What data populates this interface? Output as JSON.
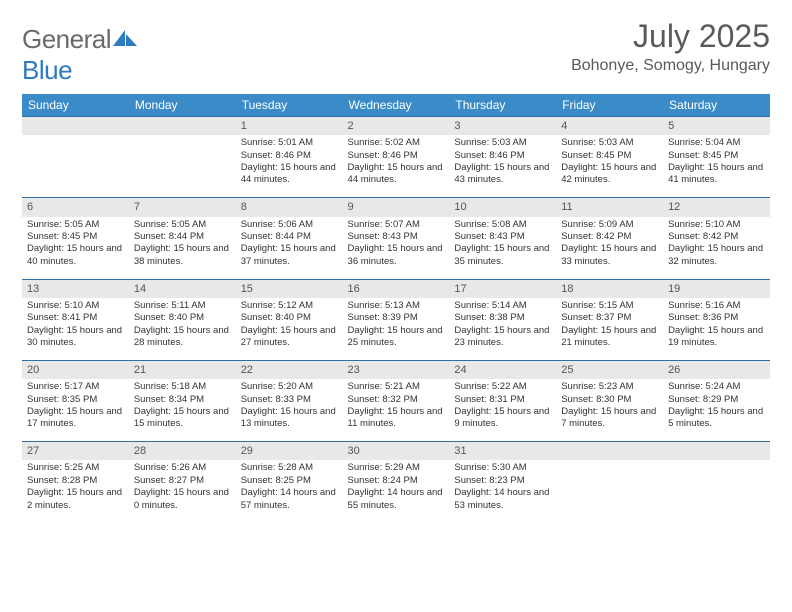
{
  "logo": {
    "text1": "General",
    "text2": "Blue"
  },
  "title": "July 2025",
  "location": "Bohonye, Somogy, Hungary",
  "colors": {
    "header_bg": "#3b8bc8",
    "header_text": "#ffffff",
    "daynum_bg": "#e8e8e8",
    "border": "#2f6fa8",
    "logo_gray": "#6a6a6a",
    "logo_blue": "#2f7bc0"
  },
  "weekdays": [
    "Sunday",
    "Monday",
    "Tuesday",
    "Wednesday",
    "Thursday",
    "Friday",
    "Saturday"
  ],
  "weeks": [
    [
      {
        "n": "",
        "sr": "",
        "ss": "",
        "dl": ""
      },
      {
        "n": "",
        "sr": "",
        "ss": "",
        "dl": ""
      },
      {
        "n": "1",
        "sr": "Sunrise: 5:01 AM",
        "ss": "Sunset: 8:46 PM",
        "dl": "Daylight: 15 hours and 44 minutes."
      },
      {
        "n": "2",
        "sr": "Sunrise: 5:02 AM",
        "ss": "Sunset: 8:46 PM",
        "dl": "Daylight: 15 hours and 44 minutes."
      },
      {
        "n": "3",
        "sr": "Sunrise: 5:03 AM",
        "ss": "Sunset: 8:46 PM",
        "dl": "Daylight: 15 hours and 43 minutes."
      },
      {
        "n": "4",
        "sr": "Sunrise: 5:03 AM",
        "ss": "Sunset: 8:45 PM",
        "dl": "Daylight: 15 hours and 42 minutes."
      },
      {
        "n": "5",
        "sr": "Sunrise: 5:04 AM",
        "ss": "Sunset: 8:45 PM",
        "dl": "Daylight: 15 hours and 41 minutes."
      }
    ],
    [
      {
        "n": "6",
        "sr": "Sunrise: 5:05 AM",
        "ss": "Sunset: 8:45 PM",
        "dl": "Daylight: 15 hours and 40 minutes."
      },
      {
        "n": "7",
        "sr": "Sunrise: 5:05 AM",
        "ss": "Sunset: 8:44 PM",
        "dl": "Daylight: 15 hours and 38 minutes."
      },
      {
        "n": "8",
        "sr": "Sunrise: 5:06 AM",
        "ss": "Sunset: 8:44 PM",
        "dl": "Daylight: 15 hours and 37 minutes."
      },
      {
        "n": "9",
        "sr": "Sunrise: 5:07 AM",
        "ss": "Sunset: 8:43 PM",
        "dl": "Daylight: 15 hours and 36 minutes."
      },
      {
        "n": "10",
        "sr": "Sunrise: 5:08 AM",
        "ss": "Sunset: 8:43 PM",
        "dl": "Daylight: 15 hours and 35 minutes."
      },
      {
        "n": "11",
        "sr": "Sunrise: 5:09 AM",
        "ss": "Sunset: 8:42 PM",
        "dl": "Daylight: 15 hours and 33 minutes."
      },
      {
        "n": "12",
        "sr": "Sunrise: 5:10 AM",
        "ss": "Sunset: 8:42 PM",
        "dl": "Daylight: 15 hours and 32 minutes."
      }
    ],
    [
      {
        "n": "13",
        "sr": "Sunrise: 5:10 AM",
        "ss": "Sunset: 8:41 PM",
        "dl": "Daylight: 15 hours and 30 minutes."
      },
      {
        "n": "14",
        "sr": "Sunrise: 5:11 AM",
        "ss": "Sunset: 8:40 PM",
        "dl": "Daylight: 15 hours and 28 minutes."
      },
      {
        "n": "15",
        "sr": "Sunrise: 5:12 AM",
        "ss": "Sunset: 8:40 PM",
        "dl": "Daylight: 15 hours and 27 minutes."
      },
      {
        "n": "16",
        "sr": "Sunrise: 5:13 AM",
        "ss": "Sunset: 8:39 PM",
        "dl": "Daylight: 15 hours and 25 minutes."
      },
      {
        "n": "17",
        "sr": "Sunrise: 5:14 AM",
        "ss": "Sunset: 8:38 PM",
        "dl": "Daylight: 15 hours and 23 minutes."
      },
      {
        "n": "18",
        "sr": "Sunrise: 5:15 AM",
        "ss": "Sunset: 8:37 PM",
        "dl": "Daylight: 15 hours and 21 minutes."
      },
      {
        "n": "19",
        "sr": "Sunrise: 5:16 AM",
        "ss": "Sunset: 8:36 PM",
        "dl": "Daylight: 15 hours and 19 minutes."
      }
    ],
    [
      {
        "n": "20",
        "sr": "Sunrise: 5:17 AM",
        "ss": "Sunset: 8:35 PM",
        "dl": "Daylight: 15 hours and 17 minutes."
      },
      {
        "n": "21",
        "sr": "Sunrise: 5:18 AM",
        "ss": "Sunset: 8:34 PM",
        "dl": "Daylight: 15 hours and 15 minutes."
      },
      {
        "n": "22",
        "sr": "Sunrise: 5:20 AM",
        "ss": "Sunset: 8:33 PM",
        "dl": "Daylight: 15 hours and 13 minutes."
      },
      {
        "n": "23",
        "sr": "Sunrise: 5:21 AM",
        "ss": "Sunset: 8:32 PM",
        "dl": "Daylight: 15 hours and 11 minutes."
      },
      {
        "n": "24",
        "sr": "Sunrise: 5:22 AM",
        "ss": "Sunset: 8:31 PM",
        "dl": "Daylight: 15 hours and 9 minutes."
      },
      {
        "n": "25",
        "sr": "Sunrise: 5:23 AM",
        "ss": "Sunset: 8:30 PM",
        "dl": "Daylight: 15 hours and 7 minutes."
      },
      {
        "n": "26",
        "sr": "Sunrise: 5:24 AM",
        "ss": "Sunset: 8:29 PM",
        "dl": "Daylight: 15 hours and 5 minutes."
      }
    ],
    [
      {
        "n": "27",
        "sr": "Sunrise: 5:25 AM",
        "ss": "Sunset: 8:28 PM",
        "dl": "Daylight: 15 hours and 2 minutes."
      },
      {
        "n": "28",
        "sr": "Sunrise: 5:26 AM",
        "ss": "Sunset: 8:27 PM",
        "dl": "Daylight: 15 hours and 0 minutes."
      },
      {
        "n": "29",
        "sr": "Sunrise: 5:28 AM",
        "ss": "Sunset: 8:25 PM",
        "dl": "Daylight: 14 hours and 57 minutes."
      },
      {
        "n": "30",
        "sr": "Sunrise: 5:29 AM",
        "ss": "Sunset: 8:24 PM",
        "dl": "Daylight: 14 hours and 55 minutes."
      },
      {
        "n": "31",
        "sr": "Sunrise: 5:30 AM",
        "ss": "Sunset: 8:23 PM",
        "dl": "Daylight: 14 hours and 53 minutes."
      },
      {
        "n": "",
        "sr": "",
        "ss": "",
        "dl": ""
      },
      {
        "n": "",
        "sr": "",
        "ss": "",
        "dl": ""
      }
    ]
  ]
}
